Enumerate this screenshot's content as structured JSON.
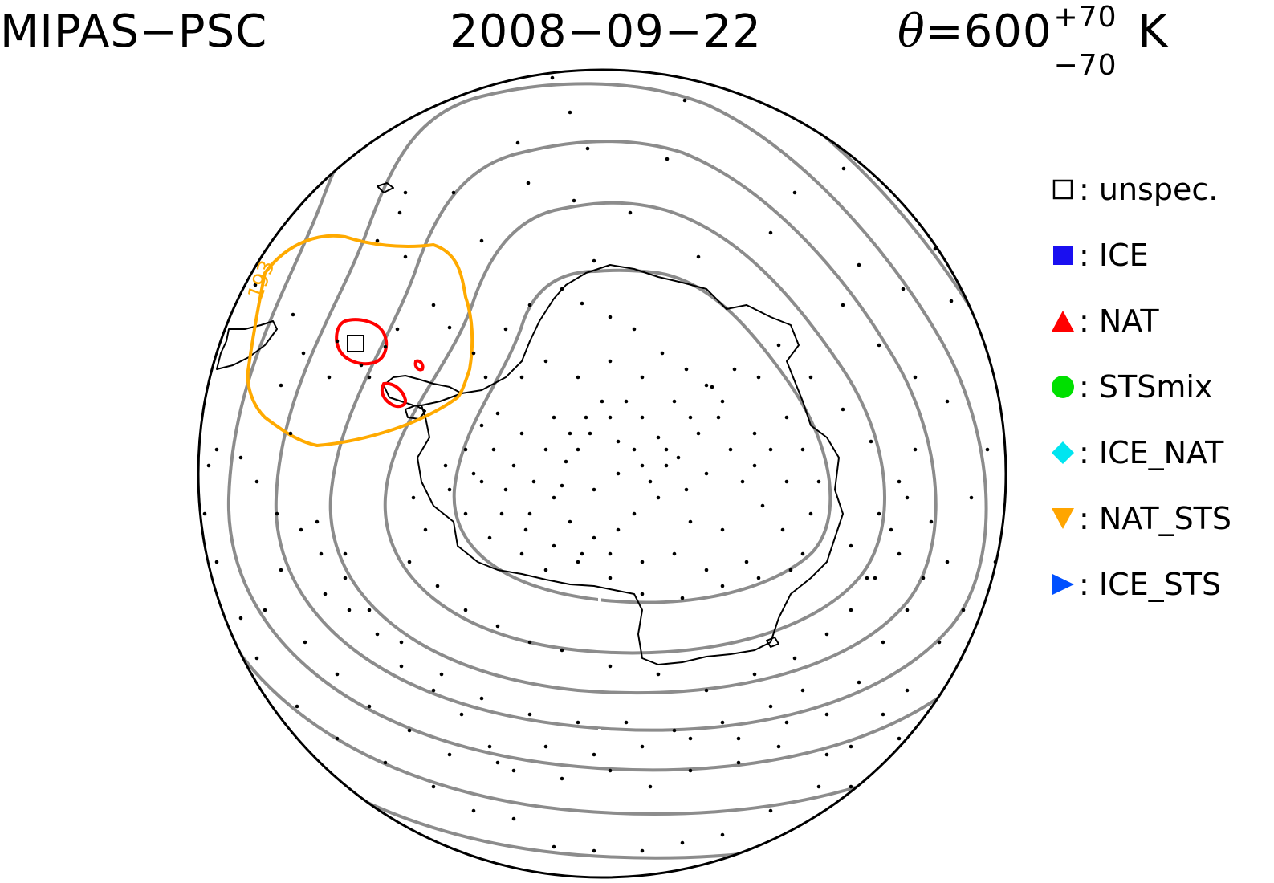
{
  "header": {
    "instrument": "MIPAS−PSC",
    "date": "2008−09−22",
    "theta_symbol": "θ",
    "theta_equals": "=600",
    "theta_plus": "+70",
    "theta_minus": "−70",
    "theta_unit": "K"
  },
  "legend": {
    "items": [
      {
        "label": ": unspec.",
        "marker": "square-open",
        "color": "#000000"
      },
      {
        "label": ": ICE",
        "marker": "square-filled",
        "color": "#1a0ff0"
      },
      {
        "label": ": NAT",
        "marker": "triangle-up",
        "color": "#ff0000"
      },
      {
        "label": ": STSmix",
        "marker": "circle",
        "color": "#00e000"
      },
      {
        "label": ": ICE_NAT",
        "marker": "diamond",
        "color": "#00e5f0"
      },
      {
        "label": ": NAT_STS",
        "marker": "triangle-down",
        "color": "#ffa500"
      },
      {
        "label": ": ICE_STS",
        "marker": "triangle-right",
        "color": "#0050ff"
      }
    ]
  },
  "map": {
    "projection": "south polar stereographic",
    "contour_label": "193",
    "colors": {
      "contour_gray": "#8c8c8c",
      "contour_orange": "#ffaa00",
      "contour_red": "#ff0000",
      "coastline": "#000000"
    }
  }
}
